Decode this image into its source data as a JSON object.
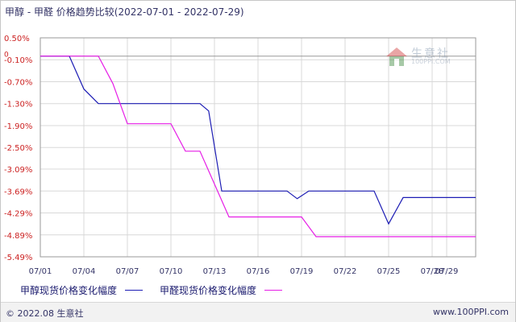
{
  "title": "甲醇 - 甲醛 价格趋势比较(2022-07-01 - 2022-07-29)",
  "footer": {
    "copyright": "© 2022.08 生意社",
    "url": "www.100PPI.com"
  },
  "watermark": {
    "name": "生意社",
    "url": "100PPI.COM"
  },
  "colors": {
    "methanol": "#1c1cb4",
    "formaldehyde": "#e61ee6",
    "grid": "#d8d8d8",
    "axis": "#9a9a9a",
    "ylabel": "#cc2222",
    "xlabel": "#333366"
  },
  "chart_data": {
    "type": "line",
    "ylim": [
      -5.49,
      0.5
    ],
    "yticks": [
      "0.50%",
      "-0.10%",
      "-0.70%",
      "-1.30%",
      "-1.90%",
      "-2.50%",
      "-3.09%",
      "-3.69%",
      "-4.29%",
      "-4.89%",
      "-5.49%"
    ],
    "ytick_values": [
      0.5,
      -0.1,
      -0.7,
      -1.3,
      -1.9,
      -2.5,
      -3.09,
      -3.69,
      -4.29,
      -4.89,
      -5.49
    ],
    "y_zero_label": "0",
    "xticks": [
      "07/01",
      "07/04",
      "07/07",
      "07/10",
      "07/13",
      "07/16",
      "07/19",
      "07/22",
      "07/25",
      "07/28",
      "07/29"
    ],
    "xtick_days": [
      1,
      4,
      7,
      10,
      13,
      16,
      19,
      22,
      25,
      28,
      29
    ],
    "xlim": [
      1,
      31
    ],
    "grid": true,
    "series": [
      {
        "name": "甲醇现货价格变化幅度",
        "points": [
          [
            1,
            0
          ],
          [
            3,
            0
          ],
          [
            4,
            -0.9
          ],
          [
            5,
            -1.3
          ],
          [
            12,
            -1.3
          ],
          [
            12.6,
            -1.5
          ],
          [
            13.5,
            -3.69
          ],
          [
            18,
            -3.69
          ],
          [
            18.7,
            -3.9
          ],
          [
            19.5,
            -3.69
          ],
          [
            24,
            -3.69
          ],
          [
            25,
            -4.59
          ],
          [
            26,
            -3.87
          ],
          [
            31,
            -3.87
          ]
        ]
      },
      {
        "name": "甲醛现货价格变化幅度",
        "points": [
          [
            1,
            0
          ],
          [
            5,
            0
          ],
          [
            6,
            -0.75
          ],
          [
            7,
            -1.85
          ],
          [
            10,
            -1.85
          ],
          [
            11,
            -2.6
          ],
          [
            12,
            -2.6
          ],
          [
            14,
            -4.4
          ],
          [
            19,
            -4.4
          ],
          [
            20,
            -4.94
          ],
          [
            31,
            -4.94
          ]
        ]
      }
    ]
  }
}
